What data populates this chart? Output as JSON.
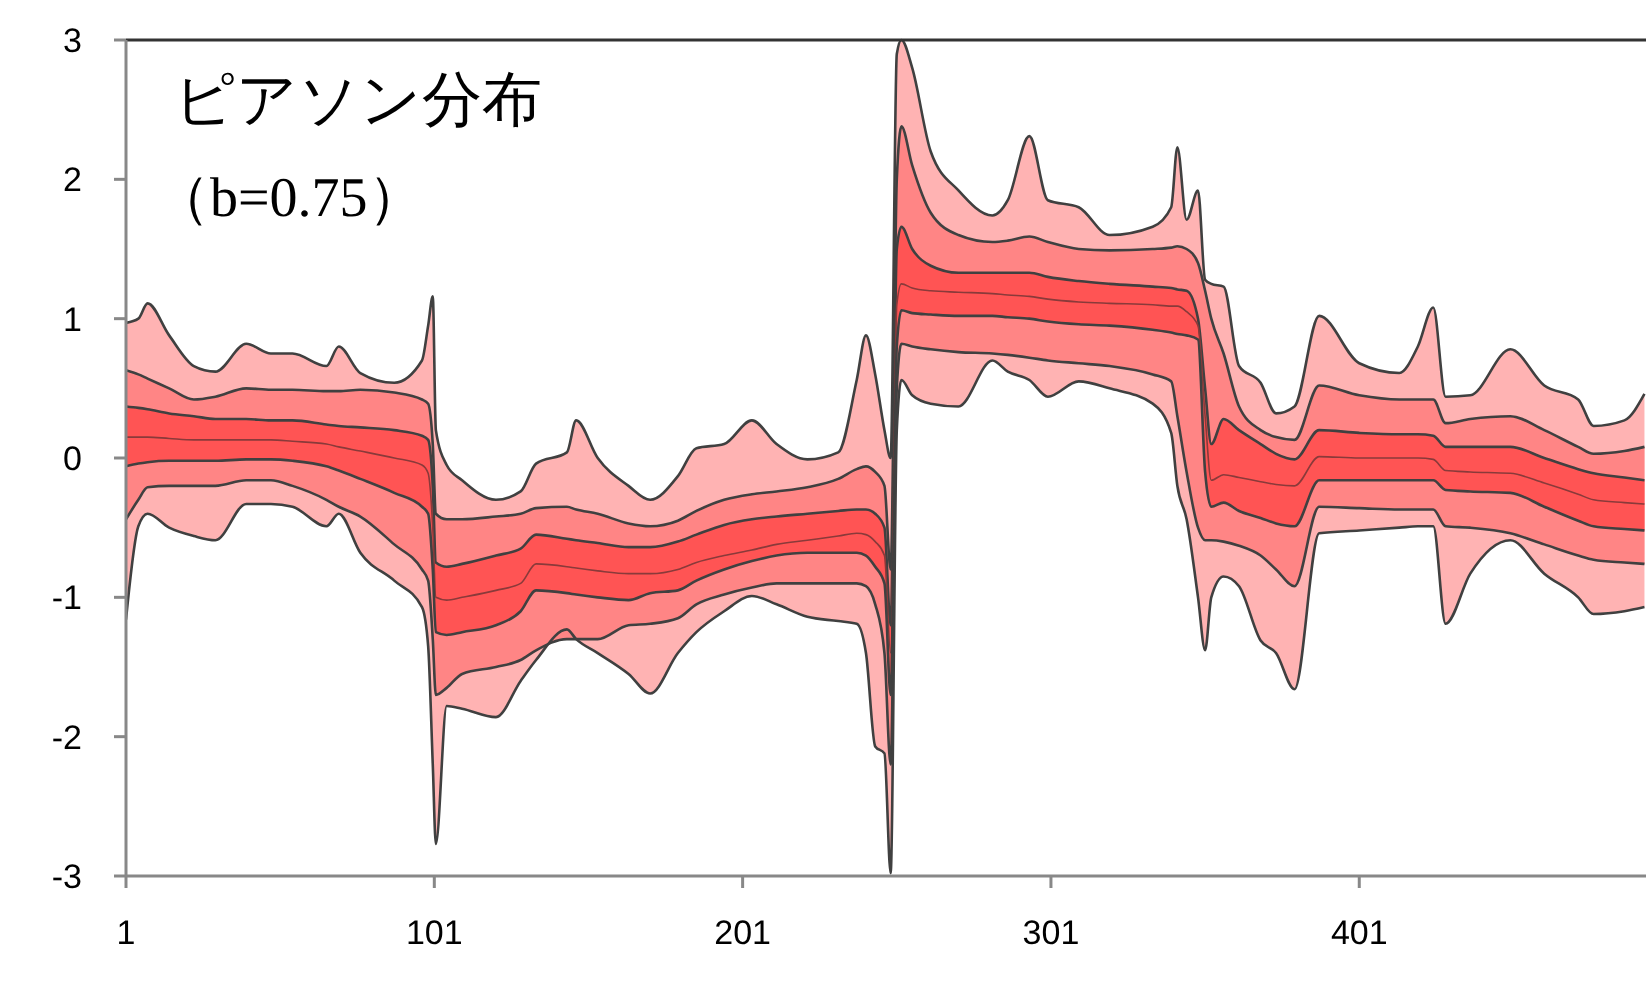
{
  "chart_data": {
    "type": "line",
    "title": "ピアソン分布",
    "subtitle": "（b=0.75）",
    "x": [
      1,
      5,
      8,
      15,
      23,
      30,
      40,
      48,
      55,
      66,
      70,
      77,
      88,
      97,
      99,
      100.5,
      101.5,
      105,
      110,
      121,
      129,
      134,
      144,
      147,
      154,
      164,
      171,
      180,
      186,
      195,
      204,
      212,
      222,
      232,
      238,
      241,
      244,
      247,
      249,
      251,
      252.5,
      256,
      262,
      271,
      282,
      287,
      294,
      300,
      310,
      320,
      334,
      340,
      342,
      345,
      348.7,
      351,
      353,
      357,
      362,
      369,
      374,
      380,
      388,
      401,
      414,
      420,
      425,
      429,
      437,
      450,
      461,
      472,
      477,
      487,
      493.5
    ],
    "xlim": [
      1,
      494
    ],
    "xticks": [
      1,
      101,
      201,
      301,
      401
    ],
    "ylim": [
      -3,
      3
    ],
    "yticks": [
      -3,
      -2,
      -1,
      0,
      1,
      2,
      3
    ],
    "series": [
      {
        "color": "#404040",
        "colors": [
          "#ffb3b3",
          "#ffb3b3",
          "#ffb3b3",
          "#ffb3b3",
          "#ffb3b3",
          "#ffb3b3",
          "#ffb3b3",
          "#ffb3b3",
          "#ffb3b3",
          "#ffb3b3",
          "#ffb3b3",
          "#ffb3b3",
          "#ffb3b3",
          "#ffb3b3",
          "#ffb3b3",
          "#ffb3b3",
          "#ffb3b3",
          "#ffb3b3",
          "#ffb3b3",
          "#ffb3b3",
          "#ffb3b3",
          "#ffb3b3",
          "#ffb3b3",
          "#ffb3b3",
          "#ffb3b3",
          "#ffb3b3",
          "#ffb3b3",
          "#ffb3b3",
          "#ffb3b3",
          "#ffb3b3",
          "#ffb3b3",
          "#ffb3b3",
          "#ffb3b3",
          "#ffb3b3",
          "#ffb3b3",
          "#ffb3b3",
          "#ffb3b3",
          "#ffb3b3",
          "#ffb3b3",
          "#ffb3b3",
          "#ffb3b3",
          "#ffb3b3",
          "#ffb3b3",
          "#ffb3b3",
          "#ffb3b3",
          "#ffb3b3",
          "#ffb3b3",
          "#ffb3b3",
          "#ffb3b3",
          "#ffb3b3",
          "#ffb3b3",
          "#ffb3b3",
          "#ffb3b3",
          "#ffb3b3",
          "#ffb3b3",
          "#ffb3b3",
          "#ffb3b3",
          "#ffb3b3",
          "#ffb3b3",
          "#ffb3b3",
          "#ffb3b3",
          "#ffb3b3",
          "#ffb3b3",
          "#ffb3b3",
          "#ffb3b3",
          "#ffb3b3",
          "#ffb3b3",
          "#ffb3b3",
          "#ffb3b3",
          "#ffb3b3",
          "#ffb3b3",
          "#ffb3b3",
          "#ffb3b3",
          "#ffb3b3",
          "#ffb3b3"
        ],
        "upper": [
          0.97,
          1,
          1.11,
          0.88,
          0.66,
          0.62,
          0.82,
          0.75,
          0.75,
          0.66,
          0.8,
          0.61,
          0.54,
          0.7,
          0.95,
          1.16,
          0.2,
          -0.05,
          -0.16,
          -0.3,
          -0.24,
          -0.04,
          0.04,
          0.27,
          0,
          -0.2,
          -0.3,
          -0.13,
          0.07,
          0.1,
          0.27,
          0.1,
          -0.01,
          0.04,
          0.56,
          0.88,
          0.6,
          0.2,
          0,
          2.9,
          3,
          2.8,
          2.2,
          1.92,
          1.74,
          1.85,
          2.31,
          1.85,
          1.8,
          1.6,
          1.66,
          1.8,
          2.23,
          1.71,
          1.92,
          1.28,
          1.25,
          1.23,
          0.66,
          0.54,
          0.32,
          0.37,
          1.02,
          0.68,
          0.61,
          0.8,
          1.08,
          0.44,
          0.45,
          0.78,
          0.52,
          0.42,
          0.23,
          0.27,
          0.46
        ],
        "values": [
          0.97,
          1,
          1.11,
          0.88,
          0.66,
          0.62,
          0.82,
          0.75,
          0.75,
          0.66,
          0.8,
          0.61,
          0.54,
          0.7,
          0.95,
          1.16,
          0.2,
          -0.05,
          -0.16,
          -0.3,
          -0.24,
          -0.04,
          0.04,
          0.27,
          0,
          -0.2,
          -0.3,
          -0.13,
          0.07,
          0.1,
          0.27,
          0.1,
          -0.01,
          0.04,
          0.56,
          0.88,
          0.6,
          0.2,
          0,
          2.9,
          3,
          2.8,
          2.2,
          1.92,
          1.74,
          1.85,
          2.31,
          1.85,
          1.8,
          1.6,
          1.66,
          1.8,
          2.23,
          1.71,
          1.92,
          1.28,
          1.25,
          1.23,
          0.66,
          0.54,
          0.32,
          0.37,
          1.02,
          0.68,
          0.61,
          0.8,
          1.08,
          0.44,
          0.45,
          0.78,
          0.52,
          0.42,
          0.23,
          0.27,
          0.46
        ],
        "lower": [
          -1.16,
          -0.49,
          -0.4,
          -0.5,
          -0.56,
          -0.59,
          -0.33,
          -0.33,
          -0.35,
          -0.49,
          -0.4,
          -0.68,
          -0.88,
          -1.07,
          -1.35,
          -2.2,
          -2.77,
          -1.78,
          -1.8,
          -1.86,
          -1.6,
          -1.45,
          -1.23,
          -1.3,
          -1.4,
          -1.55,
          -1.69,
          -1.4,
          -1.25,
          -1.1,
          -0.99,
          -1.05,
          -1.14,
          -1.17,
          -1.19,
          -1.4,
          -2.07,
          -2.12,
          -2.98,
          0.2,
          0.56,
          0.45,
          0.39,
          0.37,
          0.7,
          0.62,
          0.56,
          0.44,
          0.55,
          0.5,
          0.39,
          0.18,
          -0.2,
          -0.44,
          -1,
          -1.38,
          -1,
          -0.85,
          -0.92,
          -1.31,
          -1.4,
          -1.66,
          -0.54,
          -0.52,
          -0.5,
          -0.49,
          -0.49,
          -1.19,
          -0.83,
          -0.59,
          -0.83,
          -1,
          -1.12,
          -1.1,
          -1.07
        ]
      },
      {
        "color": "#404040",
        "colors": [
          "#ff8585",
          "#ff8585",
          "#ff8585",
          "#ff8585",
          "#ff8585",
          "#ff8585",
          "#ff8585",
          "#ff8585",
          "#ff8585",
          "#ff8585",
          "#ff8585",
          "#ff8585",
          "#ff8585",
          "#ff8585",
          "#ff8585",
          "#ff8585",
          "#ff8585",
          "#ff8585",
          "#ff8585",
          "#ff8585",
          "#ff8585",
          "#ff8585",
          "#ff8585",
          "#ff8585",
          "#ff8585",
          "#ff8585",
          "#ff8585",
          "#ff8585",
          "#ff8585",
          "#ff8585",
          "#ff8585",
          "#ff8585",
          "#ff8585",
          "#ff8585",
          "#ff8585",
          "#ff8585",
          "#ff8585",
          "#ff8585",
          "#ff8585",
          "#ff8585",
          "#ff8585",
          "#ff8585",
          "#ff8585",
          "#ff8585",
          "#ff8585",
          "#ff8585",
          "#ff8585",
          "#ff8585",
          "#ff8585",
          "#ff8585",
          "#ff8585",
          "#ff8585",
          "#ff8585",
          "#ff8585",
          "#ff8585",
          "#ff8585",
          "#ff8585",
          "#ff8585",
          "#ff8585",
          "#ff8585",
          "#ff8585",
          "#ff8585",
          "#ff8585",
          "#ff8585",
          "#ff8585",
          "#ff8585",
          "#ff8585",
          "#ff8585",
          "#ff8585",
          "#ff8585",
          "#ff8585",
          "#ff8585",
          "#ff8585",
          "#ff8585",
          "#ff8585"
        ],
        "upper": [
          0.63,
          0.6,
          0.57,
          0.5,
          0.42,
          0.44,
          0.5,
          0.49,
          0.49,
          0.48,
          0.48,
          0.49,
          0.47,
          0.42,
          0.39,
          0.1,
          -0.4,
          -0.44,
          -0.44,
          -0.42,
          -0.4,
          -0.36,
          -0.35,
          -0.37,
          -0.4,
          -0.47,
          -0.49,
          -0.45,
          -0.38,
          -0.3,
          -0.26,
          -0.24,
          -0.21,
          -0.15,
          -0.08,
          -0.06,
          -0.1,
          -0.2,
          -0.8,
          2,
          2.38,
          2.1,
          1.76,
          1.6,
          1.55,
          1.56,
          1.59,
          1.55,
          1.5,
          1.49,
          1.5,
          1.51,
          1.52,
          1.5,
          1.4,
          1.2,
          1,
          0.75,
          0.37,
          0.2,
          0.15,
          0.13,
          0.52,
          0.45,
          0.42,
          0.42,
          0.42,
          0.25,
          0.28,
          0.3,
          0.2,
          0.08,
          0.03,
          0.05,
          0.08
        ],
        "values": [
          0.63,
          0.6,
          0.57,
          0.5,
          0.42,
          0.44,
          0.5,
          0.49,
          0.49,
          0.48,
          0.48,
          0.49,
          0.47,
          0.42,
          0.39,
          0.1,
          -0.4,
          -0.44,
          -0.44,
          -0.42,
          -0.4,
          -0.36,
          -0.35,
          -0.37,
          -0.4,
          -0.47,
          -0.49,
          -0.45,
          -0.38,
          -0.3,
          -0.26,
          -0.24,
          -0.21,
          -0.15,
          -0.08,
          -0.06,
          -0.1,
          -0.2,
          -0.8,
          2,
          2.38,
          2.1,
          1.76,
          1.6,
          1.55,
          1.56,
          1.59,
          1.55,
          1.5,
          1.49,
          1.5,
          1.51,
          1.52,
          1.5,
          1.4,
          1.2,
          1,
          0.75,
          0.37,
          0.2,
          0.15,
          0.13,
          0.52,
          0.45,
          0.42,
          0.42,
          0.42,
          0.25,
          0.28,
          0.3,
          0.2,
          0.08,
          0.03,
          0.05,
          0.08
        ],
        "lower": [
          -0.44,
          -0.3,
          -0.21,
          -0.2,
          -0.2,
          -0.2,
          -0.16,
          -0.16,
          -0.2,
          -0.3,
          -0.35,
          -0.42,
          -0.62,
          -0.8,
          -0.88,
          -1.3,
          -1.7,
          -1.65,
          -1.55,
          -1.5,
          -1.45,
          -1.38,
          -1.3,
          -1.3,
          -1.3,
          -1.2,
          -1.19,
          -1.15,
          -1.05,
          -0.98,
          -0.93,
          -0.9,
          -0.9,
          -0.9,
          -0.9,
          -0.92,
          -1.05,
          -1.4,
          -2.2,
          0.5,
          0.82,
          0.8,
          0.78,
          0.76,
          0.75,
          0.74,
          0.72,
          0.7,
          0.68,
          0.66,
          0.6,
          0.55,
          0.3,
          -0.1,
          -0.5,
          -0.59,
          -0.59,
          -0.6,
          -0.63,
          -0.7,
          -0.8,
          -0.92,
          -0.35,
          -0.36,
          -0.37,
          -0.37,
          -0.37,
          -0.49,
          -0.5,
          -0.54,
          -0.62,
          -0.7,
          -0.73,
          -0.75,
          -0.76
        ]
      },
      {
        "color": "#404040",
        "colors": [
          "#ff5454",
          "#ff5454",
          "#ff5454",
          "#ff5454",
          "#ff5454",
          "#ff5454",
          "#ff5454",
          "#ff5454",
          "#ff5454",
          "#ff5454",
          "#ff5454",
          "#ff5454",
          "#ff5454",
          "#ff5454",
          "#ff5454",
          "#ff5454",
          "#ff5454",
          "#ff5454",
          "#ff5454",
          "#ff5454",
          "#ff5454",
          "#ff5454",
          "#ff5454",
          "#ff5454",
          "#ff5454",
          "#ff5454",
          "#ff5454",
          "#ff5454",
          "#ff5454",
          "#ff5454",
          "#ff5454",
          "#ff5454",
          "#ff5454",
          "#ff5454",
          "#ff5454",
          "#ff5454",
          "#ff5454",
          "#ff5454",
          "#ff5454",
          "#ff5454",
          "#ff5454",
          "#ff5454",
          "#ff5454",
          "#ff5454",
          "#ff5454",
          "#ff5454",
          "#ff5454",
          "#ff5454",
          "#ff5454",
          "#ff5454",
          "#ff5454",
          "#ff5454",
          "#ff5454",
          "#ff5454",
          "#ff5454",
          "#ff5454",
          "#ff5454",
          "#ff5454",
          "#ff5454",
          "#ff5454",
          "#ff5454",
          "#ff5454",
          "#ff5454",
          "#ff5454",
          "#ff5454",
          "#ff5454",
          "#ff5454",
          "#ff5454",
          "#ff5454",
          "#ff5454",
          "#ff5454",
          "#ff5454",
          "#ff5454",
          "#ff5454",
          "#ff5454"
        ],
        "upper": [
          0.37,
          0.36,
          0.35,
          0.32,
          0.3,
          0.28,
          0.28,
          0.27,
          0.27,
          0.24,
          0.23,
          0.22,
          0.2,
          0.16,
          0.13,
          -0.2,
          -0.75,
          -0.78,
          -0.76,
          -0.7,
          -0.65,
          -0.55,
          -0.58,
          -0.59,
          -0.61,
          -0.64,
          -0.64,
          -0.6,
          -0.55,
          -0.48,
          -0.44,
          -0.42,
          -0.4,
          -0.38,
          -0.37,
          -0.37,
          -0.4,
          -0.5,
          -1.2,
          1.5,
          1.66,
          1.5,
          1.38,
          1.33,
          1.33,
          1.33,
          1.33,
          1.3,
          1.27,
          1.25,
          1.23,
          1.22,
          1.21,
          1.2,
          1,
          0.5,
          0.1,
          0.28,
          0.2,
          0.1,
          0.03,
          -0.01,
          0.2,
          0.18,
          0.17,
          0.17,
          0.16,
          0.08,
          0.08,
          0.08,
          0,
          -0.08,
          -0.11,
          -0.14,
          -0.16
        ],
        "values": [
          0.37,
          0.36,
          0.35,
          0.32,
          0.3,
          0.28,
          0.28,
          0.27,
          0.27,
          0.24,
          0.23,
          0.22,
          0.2,
          0.16,
          0.13,
          -0.2,
          -0.75,
          -0.78,
          -0.76,
          -0.7,
          -0.65,
          -0.55,
          -0.58,
          -0.59,
          -0.61,
          -0.64,
          -0.64,
          -0.6,
          -0.55,
          -0.48,
          -0.44,
          -0.42,
          -0.4,
          -0.38,
          -0.37,
          -0.37,
          -0.4,
          -0.5,
          -1.2,
          1.5,
          1.66,
          1.5,
          1.38,
          1.33,
          1.33,
          1.33,
          1.33,
          1.3,
          1.27,
          1.25,
          1.23,
          1.22,
          1.21,
          1.2,
          1,
          0.5,
          0.1,
          0.28,
          0.2,
          0.1,
          0.03,
          -0.01,
          0.2,
          0.18,
          0.17,
          0.17,
          0.16,
          0.08,
          0.08,
          0.08,
          0,
          -0.08,
          -0.11,
          -0.14,
          -0.16
        ],
        "lower": [
          -0.06,
          -0.04,
          -0.03,
          -0.02,
          -0.02,
          -0.02,
          -0.01,
          -0.01,
          -0.02,
          -0.06,
          -0.09,
          -0.15,
          -0.25,
          -0.35,
          -0.4,
          -0.8,
          -1.25,
          -1.27,
          -1.25,
          -1.2,
          -1.1,
          -0.95,
          -0.97,
          -0.98,
          -1,
          -1.02,
          -0.97,
          -0.95,
          -0.88,
          -0.8,
          -0.74,
          -0.7,
          -0.68,
          -0.68,
          -0.68,
          -0.7,
          -0.78,
          -0.9,
          -1.7,
          0.8,
          1.06,
          1.04,
          1.03,
          1.02,
          1.02,
          1.01,
          1,
          0.98,
          0.96,
          0.95,
          0.92,
          0.9,
          0.89,
          0.88,
          0.85,
          -0.1,
          -0.35,
          -0.32,
          -0.38,
          -0.43,
          -0.47,
          -0.49,
          -0.16,
          -0.16,
          -0.16,
          -0.16,
          -0.16,
          -0.23,
          -0.24,
          -0.25,
          -0.35,
          -0.45,
          -0.49,
          -0.51,
          -0.52
        ]
      },
      {
        "color": "#8a3a3a",
        "values": [
          0.15,
          0.15,
          0.15,
          0.14,
          0.13,
          0.13,
          0.13,
          0.13,
          0.12,
          0.1,
          0.08,
          0.05,
          0,
          -0.05,
          -0.11,
          -0.5,
          -1,
          -1.02,
          -1,
          -0.95,
          -0.9,
          -0.76,
          -0.78,
          -0.79,
          -0.81,
          -0.83,
          -0.83,
          -0.8,
          -0.75,
          -0.7,
          -0.66,
          -0.62,
          -0.59,
          -0.56,
          -0.54,
          -0.55,
          -0.6,
          -0.7,
          -1.4,
          1.1,
          1.25,
          1.22,
          1.2,
          1.19,
          1.18,
          1.17,
          1.16,
          1.14,
          1.12,
          1.11,
          1.1,
          1.09,
          1.09,
          1.05,
          0.95,
          0.3,
          -0.16,
          -0.12,
          -0.14,
          -0.17,
          -0.19,
          -0.2,
          0.01,
          0,
          0,
          0,
          -0.01,
          -0.09,
          -0.1,
          -0.11,
          -0.18,
          -0.26,
          -0.3,
          -0.32,
          -0.33
        ]
      },
      {
        "color": "#404040",
        "values": [
          -0.06,
          -0.04,
          -0.03,
          -0.02,
          -0.02,
          -0.02,
          -0.01,
          -0.01,
          -0.02,
          -0.06,
          -0.09,
          -0.15,
          -0.25,
          -0.35,
          -0.4,
          -0.8,
          -1.25,
          -1.27,
          -1.25,
          -1.2,
          -1.1,
          -0.95,
          -0.97,
          -0.98,
          -1,
          -1.02,
          -0.97,
          -0.95,
          -0.88,
          -0.8,
          -0.74,
          -0.7,
          -0.68,
          -0.68,
          -0.68,
          -0.7,
          -0.78,
          -0.9,
          -1.7,
          0.8,
          1.06,
          1.04,
          1.03,
          1.02,
          1.02,
          1.01,
          1,
          0.98,
          0.96,
          0.95,
          0.92,
          0.9,
          0.89,
          0.88,
          0.85,
          -0.1,
          -0.35,
          -0.32,
          -0.38,
          -0.43,
          -0.47,
          -0.49,
          -0.16,
          -0.16,
          -0.16,
          -0.16,
          -0.16,
          -0.23,
          -0.24,
          -0.25,
          -0.35,
          -0.45,
          -0.49,
          -0.51,
          -0.52
        ]
      },
      {
        "color": "#404040",
        "values": [
          -0.44,
          -0.3,
          -0.21,
          -0.2,
          -0.2,
          -0.2,
          -0.16,
          -0.16,
          -0.2,
          -0.3,
          -0.35,
          -0.42,
          -0.62,
          -0.8,
          -0.88,
          -1.3,
          -1.7,
          -1.65,
          -1.55,
          -1.5,
          -1.45,
          -1.38,
          -1.3,
          -1.3,
          -1.3,
          -1.2,
          -1.19,
          -1.15,
          -1.05,
          -0.98,
          -0.93,
          -0.9,
          -0.9,
          -0.9,
          -0.9,
          -0.92,
          -1.05,
          -1.4,
          -2.2,
          0.5,
          0.82,
          0.8,
          0.78,
          0.76,
          0.75,
          0.74,
          0.72,
          0.7,
          0.68,
          0.66,
          0.6,
          0.55,
          0.3,
          -0.1,
          -0.5,
          -0.59,
          -0.59,
          -0.6,
          -0.63,
          -0.7,
          -0.8,
          -0.92,
          -0.35,
          -0.36,
          -0.37,
          -0.37,
          -0.37,
          -0.49,
          -0.5,
          -0.54,
          -0.62,
          -0.7,
          -0.73,
          -0.75,
          -0.76
        ]
      },
      {
        "color": "#404040",
        "values": [
          -1.16,
          -0.49,
          -0.4,
          -0.5,
          -0.56,
          -0.59,
          -0.33,
          -0.33,
          -0.35,
          -0.49,
          -0.4,
          -0.68,
          -0.88,
          -1.07,
          -1.35,
          -2.2,
          -2.77,
          -1.78,
          -1.8,
          -1.86,
          -1.6,
          -1.45,
          -1.23,
          -1.3,
          -1.4,
          -1.55,
          -1.69,
          -1.4,
          -1.25,
          -1.1,
          -0.99,
          -1.05,
          -1.14,
          -1.17,
          -1.19,
          -1.4,
          -2.07,
          -2.12,
          -2.98,
          0.2,
          0.56,
          0.45,
          0.39,
          0.37,
          0.7,
          0.62,
          0.56,
          0.44,
          0.55,
          0.5,
          0.39,
          0.18,
          -0.2,
          -0.44,
          -1,
          -1.38,
          -1,
          -0.85,
          -0.92,
          -1.31,
          -1.4,
          -1.66,
          -0.54,
          -0.52,
          -0.5,
          -0.49,
          -0.49,
          -1.19,
          -0.83,
          -0.59,
          -0.83,
          -1,
          -1.12,
          -1.1,
          -1.07
        ]
      }
    ]
  }
}
